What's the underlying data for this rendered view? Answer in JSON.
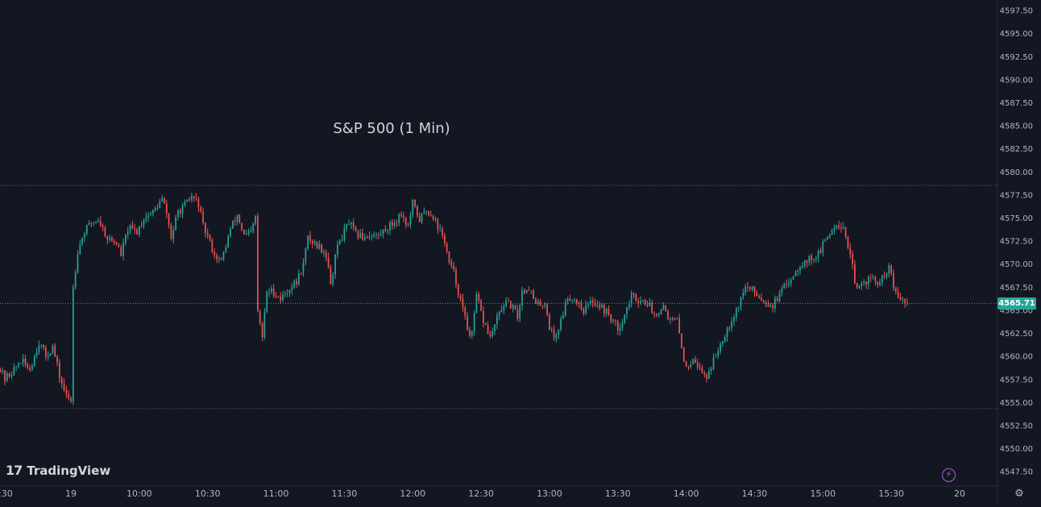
{
  "chart_data": {
    "type": "candlestick",
    "title": "S&P 500 (1 Min)",
    "ylim": [
      4545.9,
      4598.6
    ],
    "y_ticks": [
      4547.5,
      4550,
      4552.5,
      4555,
      4557.5,
      4560,
      4562.5,
      4565,
      4567.5,
      4570,
      4572.5,
      4575,
      4577.5,
      4580,
      4582.5,
      4585,
      4587.5,
      4590,
      4592.5,
      4595,
      4597.5
    ],
    "y_tick_labels": [
      "4547.50",
      "4550.00",
      "4552.50",
      "4555.00",
      "4557.50",
      "4560.00",
      "4562.50",
      "4565.00",
      "4567.50",
      "4570.00",
      "4572.50",
      "4575.00",
      "4577.50",
      "4580.00",
      "4582.50",
      "4585.00",
      "4587.50",
      "4590.00",
      "4592.50",
      "4595.00",
      "4597.50"
    ],
    "x_ticks": [
      {
        "label": ":30",
        "t": -30
      },
      {
        "label": "19",
        "t": 0
      },
      {
        "label": "10:00",
        "t": 30
      },
      {
        "label": "10:30",
        "t": 60
      },
      {
        "label": "11:00",
        "t": 90
      },
      {
        "label": "11:30",
        "t": 120
      },
      {
        "label": "12:00",
        "t": 150
      },
      {
        "label": "12:30",
        "t": 180
      },
      {
        "label": "13:00",
        "t": 210
      },
      {
        "label": "13:30",
        "t": 240
      },
      {
        "label": "14:00",
        "t": 270
      },
      {
        "label": "14:30",
        "t": 300
      },
      {
        "label": "15:00",
        "t": 330
      },
      {
        "label": "15:30",
        "t": 360
      },
      {
        "label": "20",
        "t": 390
      }
    ],
    "x_unit": "minutes since 09:30 open on the 19th; negative values are the prior session",
    "close_path": [
      [
        -32,
        4559.0
      ],
      [
        -29,
        4557.5
      ],
      [
        -25,
        4558.5
      ],
      [
        -22,
        4559.5
      ],
      [
        -18,
        4558.6
      ],
      [
        -14,
        4561.5
      ],
      [
        -11,
        4560.0
      ],
      [
        -8,
        4561.0
      ],
      [
        -5,
        4557.8
      ],
      [
        -2,
        4555.6
      ],
      [
        0,
        4555.2
      ],
      [
        1,
        4567.5
      ],
      [
        3,
        4571.5
      ],
      [
        6,
        4573.5
      ],
      [
        9,
        4574.5
      ],
      [
        12,
        4574.8
      ],
      [
        16,
        4572.8
      ],
      [
        20,
        4572.2
      ],
      [
        22,
        4571.0
      ],
      [
        25,
        4573.8
      ],
      [
        29,
        4573.5
      ],
      [
        32,
        4575.0
      ],
      [
        36,
        4575.6
      ],
      [
        40,
        4577.0
      ],
      [
        42,
        4575.5
      ],
      [
        44,
        4572.8
      ],
      [
        47,
        4575.6
      ],
      [
        50,
        4576.3
      ],
      [
        53,
        4577.3
      ],
      [
        56,
        4576.5
      ],
      [
        58,
        4574.0
      ],
      [
        60,
        4573.0
      ],
      [
        63,
        4571.0
      ],
      [
        66,
        4570.2
      ],
      [
        70,
        4573.8
      ],
      [
        73,
        4575.3
      ],
      [
        76,
        4573.0
      ],
      [
        79,
        4573.3
      ],
      [
        81,
        4575.0
      ],
      [
        82,
        4564.8
      ],
      [
        84,
        4562.0
      ],
      [
        86,
        4567.0
      ],
      [
        89,
        4567.0
      ],
      [
        92,
        4566.2
      ],
      [
        96,
        4567.4
      ],
      [
        99,
        4568.0
      ],
      [
        102,
        4570.0
      ],
      [
        104,
        4572.8
      ],
      [
        108,
        4572.0
      ],
      [
        111,
        4571.5
      ],
      [
        113,
        4570.0
      ],
      [
        114,
        4567.5
      ],
      [
        116,
        4571.0
      ],
      [
        118,
        4572.5
      ],
      [
        122,
        4574.5
      ],
      [
        125,
        4573.2
      ],
      [
        128,
        4572.9
      ],
      [
        132,
        4573.2
      ],
      [
        135,
        4573.0
      ],
      [
        138,
        4573.8
      ],
      [
        142,
        4574.5
      ],
      [
        145,
        4575.5
      ],
      [
        148,
        4574.0
      ],
      [
        150,
        4576.5
      ],
      [
        153,
        4574.8
      ],
      [
        156,
        4575.8
      ],
      [
        159,
        4575.2
      ],
      [
        162,
        4573.5
      ],
      [
        164,
        4572.5
      ],
      [
        166,
        4570.0
      ],
      [
        168,
        4569.0
      ],
      [
        170,
        4567.0
      ],
      [
        172,
        4565.0
      ],
      [
        174,
        4563.0
      ],
      [
        176,
        4562.2
      ],
      [
        178,
        4566.5
      ],
      [
        181,
        4563.8
      ],
      [
        184,
        4562.0
      ],
      [
        187,
        4564.0
      ],
      [
        190,
        4565.7
      ],
      [
        193,
        4565.5
      ],
      [
        196,
        4564.3
      ],
      [
        198,
        4567.0
      ],
      [
        201,
        4567.5
      ],
      [
        204,
        4565.5
      ],
      [
        208,
        4565.8
      ],
      [
        210,
        4563.2
      ],
      [
        212,
        4562.0
      ],
      [
        214,
        4563.0
      ],
      [
        218,
        4566.5
      ],
      [
        222,
        4566.0
      ],
      [
        225,
        4565.0
      ],
      [
        229,
        4566.0
      ],
      [
        232,
        4565.5
      ],
      [
        236,
        4564.5
      ],
      [
        240,
        4563.0
      ],
      [
        243,
        4564.5
      ],
      [
        246,
        4566.5
      ],
      [
        250,
        4566.0
      ],
      [
        253,
        4565.8
      ],
      [
        256,
        4564.5
      ],
      [
        260,
        4565.5
      ],
      [
        263,
        4563.8
      ],
      [
        266,
        4563.8
      ],
      [
        268,
        4561.0
      ],
      [
        270,
        4558.5
      ],
      [
        273,
        4560.0
      ],
      [
        276,
        4558.5
      ],
      [
        279,
        4557.8
      ],
      [
        282,
        4559.5
      ],
      [
        286,
        4562.0
      ],
      [
        289,
        4563.5
      ],
      [
        292,
        4565.0
      ],
      [
        296,
        4567.5
      ],
      [
        300,
        4567.0
      ],
      [
        304,
        4566.0
      ],
      [
        308,
        4565.5
      ],
      [
        312,
        4567.0
      ],
      [
        316,
        4568.5
      ],
      [
        320,
        4570.0
      ],
      [
        324,
        4570.5
      ],
      [
        328,
        4571.0
      ],
      [
        332,
        4573.0
      ],
      [
        336,
        4574.5
      ],
      [
        339,
        4574.0
      ],
      [
        341,
        4572.0
      ],
      [
        343,
        4569.5
      ],
      [
        345,
        4567.0
      ],
      [
        348,
        4568.0
      ],
      [
        351,
        4568.5
      ],
      [
        354,
        4567.8
      ],
      [
        357,
        4568.5
      ],
      [
        359,
        4569.7
      ],
      [
        362,
        4566.5
      ],
      [
        365,
        4566.0
      ],
      [
        367,
        4565.71
      ]
    ],
    "last_price": "4565.71",
    "last_price_value": 4565.71,
    "reference_lines": [
      4578.5,
      4554.3
    ],
    "grid": false,
    "legend": "none",
    "colors": {
      "background": "#131722",
      "up": "#26a69a",
      "down": "#ef5350",
      "text": "#b2b5be",
      "title": "#d1d4dc",
      "dotted_line": "#5d6370",
      "price_line": "#26a69a",
      "price_tag": "#26a69a",
      "flash_icon": "#b05bd6"
    }
  },
  "branding": {
    "logo_mark": "17",
    "logo_text": "TradingView"
  },
  "icons": {
    "flash": "lightning-icon",
    "settings": "gear-icon"
  }
}
